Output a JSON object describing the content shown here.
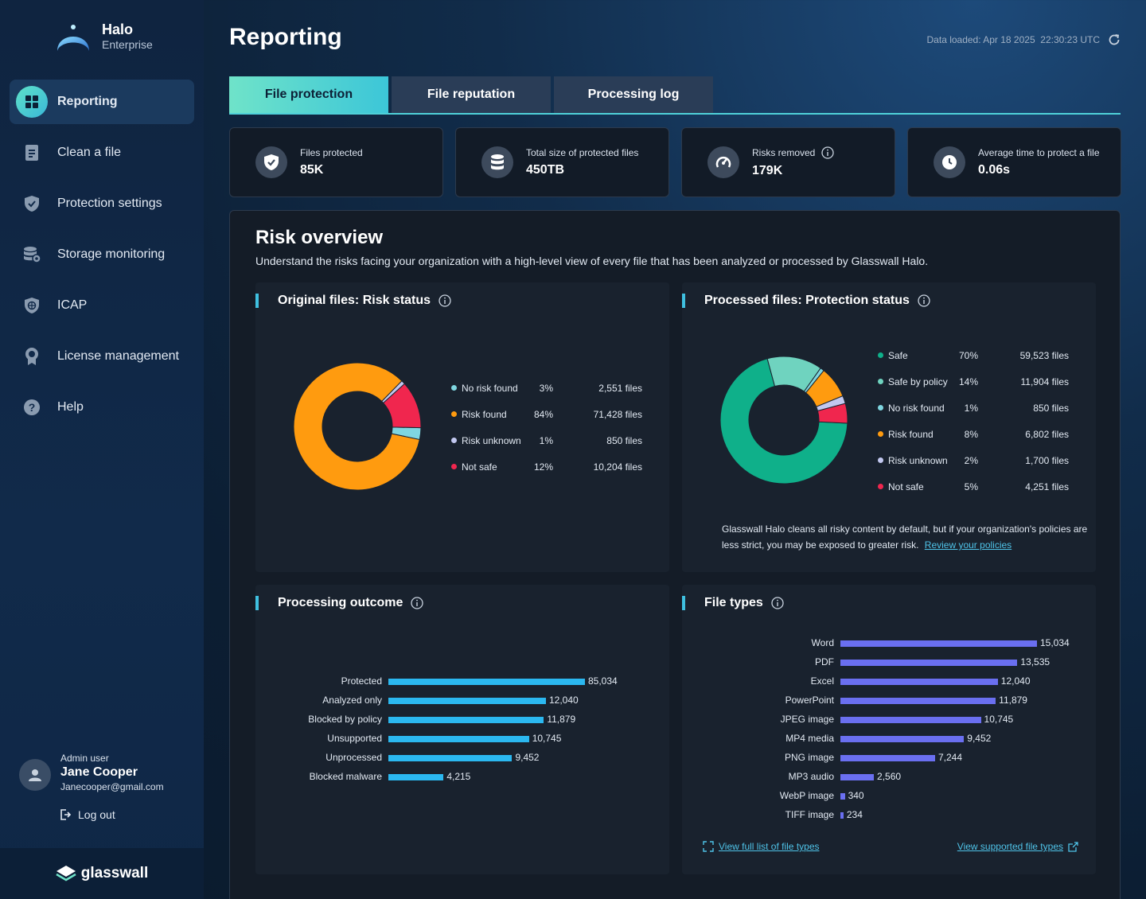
{
  "brand": {
    "name": "Halo",
    "sub": "Enterprise"
  },
  "nav": [
    {
      "label": "Reporting",
      "icon": "grid-icon"
    },
    {
      "label": "Clean a file",
      "icon": "file-icon"
    },
    {
      "label": "Protection settings",
      "icon": "shield-check-icon"
    },
    {
      "label": "Storage monitoring",
      "icon": "database-icon"
    },
    {
      "label": "ICAP",
      "icon": "shield-network-icon"
    },
    {
      "label": "License management",
      "icon": "badge-icon"
    },
    {
      "label": "Help",
      "icon": "help-icon"
    }
  ],
  "user": {
    "role": "Admin user",
    "name": "Jane Cooper",
    "email": "Janecooper@gmail.com",
    "logout": "Log out"
  },
  "footer": {
    "brand": "glasswall"
  },
  "page": {
    "title": "Reporting",
    "data_loaded": "Data loaded: Apr 18 2025  22:30:23 UTC"
  },
  "tabs": [
    "File protection",
    "File reputation",
    "Processing log"
  ],
  "stats": [
    {
      "label": "Files protected",
      "value": "85K",
      "icon": "shield-check-icon"
    },
    {
      "label": "Total size of protected files",
      "value": "450TB",
      "icon": "database-icon"
    },
    {
      "label": "Risks removed",
      "value": "179K",
      "icon": "gauge-icon"
    },
    {
      "label": "Average time to protect a file",
      "value": "0.06s",
      "icon": "clock-icon"
    }
  ],
  "overview": {
    "title": "Risk overview",
    "desc": "Understand the risks facing your organization with a high-level view of every file that has been analyzed or processed by Glasswall Halo."
  },
  "colors": {
    "safe": "#0fb08a",
    "safe_policy": "#6fd3bf",
    "no_risk": "#7fd6e0",
    "risk_found": "#ff9b0f",
    "risk_unknown": "#c2c8f0",
    "not_safe": "#f0264e",
    "cyan_bar": "#2bb8f0",
    "purple_bar": "#6a6ff0"
  },
  "chart_data": [
    {
      "type": "pie",
      "title": "Original files: Risk status",
      "categories": [
        "No risk found",
        "Risk found",
        "Risk unknown",
        "Not safe"
      ],
      "percent_labels": [
        "3%",
        "84%",
        "1%",
        "12%"
      ],
      "file_labels": [
        "2,551 files",
        "71,428 files",
        "850 files",
        "10,204 files"
      ],
      "values": [
        2551,
        71428,
        850,
        10204
      ],
      "colors": [
        "#7fd6e0",
        "#ff9b0f",
        "#c2c8f0",
        "#f0264e"
      ]
    },
    {
      "type": "pie",
      "title": "Processed files: Protection status",
      "categories": [
        "Safe",
        "Safe by policy",
        "No risk found",
        "Risk found",
        "Risk unknown",
        "Not safe"
      ],
      "percent_labels": [
        "70%",
        "14%",
        "1%",
        "8%",
        "2%",
        "5%"
      ],
      "file_labels": [
        "59,523 files",
        "11,904 files",
        "850 files",
        "6,802 files",
        "1,700 files",
        "4,251 files"
      ],
      "values": [
        59523,
        11904,
        850,
        6802,
        1700,
        4251
      ],
      "colors": [
        "#0fb08a",
        "#6fd3bf",
        "#7fd6e0",
        "#ff9b0f",
        "#c2c8f0",
        "#f0264e"
      ]
    },
    {
      "type": "bar",
      "title": "Processing outcome",
      "categories": [
        "Protected",
        "Analyzed only",
        "Blocked by policy",
        "Unsupported",
        "Unprocessed",
        "Blocked malware"
      ],
      "values": [
        85034,
        12040,
        11879,
        10745,
        9452,
        4215
      ],
      "value_labels": [
        "85,034",
        "12,040",
        "11,879",
        "10,745",
        "9,452",
        "4,215"
      ]
    },
    {
      "type": "bar",
      "title": "File types",
      "categories": [
        "Word",
        "PDF",
        "Excel",
        "PowerPoint",
        "JPEG image",
        "MP4 media",
        "PNG image",
        "MP3 audio",
        "WebP image",
        "TIFF image"
      ],
      "values": [
        15034,
        13535,
        12040,
        11879,
        10745,
        9452,
        7244,
        2560,
        340,
        234
      ],
      "value_labels": [
        "15,034",
        "13,535",
        "12,040",
        "11,879",
        "10,745",
        "9,452",
        "7,244",
        "2,560",
        "340",
        "234"
      ]
    }
  ],
  "note": {
    "text": "Glasswall Halo cleans all risky content by default, but if your organization's policies are less strict, you may be exposed to greater risk.",
    "link": "Review your policies"
  },
  "file_types_links": {
    "full_list": "View full list of file types",
    "supported": "View supported file types"
  }
}
